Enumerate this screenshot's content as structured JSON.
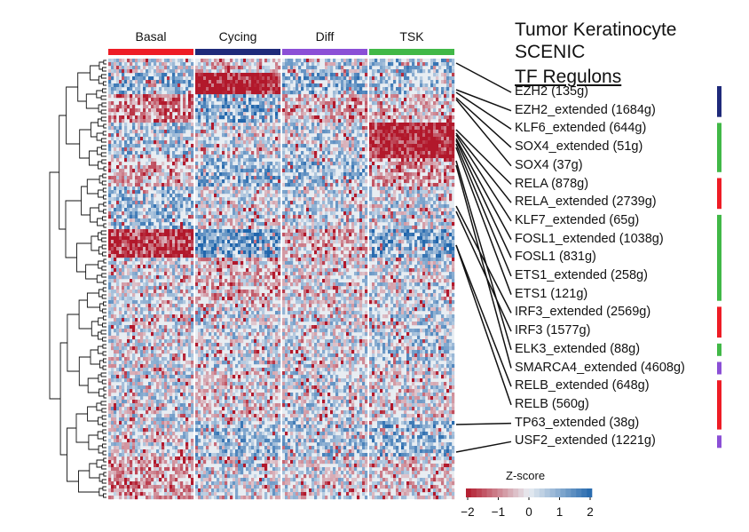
{
  "title": {
    "line1": "Tumor Keratinocyte",
    "line2": "SCENIC",
    "line3": "TF Regulons"
  },
  "colors": {
    "basal": "#ee1c25",
    "cycing": "#1f2a7a",
    "diff": "#8b4fd6",
    "tsk": "#41b847",
    "low": "#b2182b",
    "mid": "#e8edf2",
    "high": "#2166ac"
  },
  "chart_data": {
    "type": "heatmap",
    "title": "Tumor Keratinocyte SCENIC TF Regulons",
    "column_groups": [
      {
        "name": "Basal",
        "color": "#ee1c25"
      },
      {
        "name": "Cycing",
        "color": "#1f2a7a"
      },
      {
        "name": "Diff",
        "color": "#8b4fd6"
      },
      {
        "name": "TSK",
        "color": "#41b847"
      }
    ],
    "highlighted_regulons": [
      {
        "label": "EZH2 (135g)",
        "cluster": "Cycing"
      },
      {
        "label": "EZH2_extended (1684g)",
        "cluster": "Cycing"
      },
      {
        "label": "KLF6_extended (644g)",
        "cluster": "TSK"
      },
      {
        "label": "SOX4_extended (51g)",
        "cluster": "TSK"
      },
      {
        "label": "SOX4 (37g)",
        "cluster": "TSK"
      },
      {
        "label": "RELA (878g)",
        "cluster": "Basal"
      },
      {
        "label": "RELA_extended (2739g)",
        "cluster": "Basal"
      },
      {
        "label": "KLF7_extended (65g)",
        "cluster": "TSK"
      },
      {
        "label": "FOSL1_extended (1038g)",
        "cluster": "TSK"
      },
      {
        "label": "FOSL1 (831g)",
        "cluster": "TSK"
      },
      {
        "label": "ETS1_extended (258g)",
        "cluster": "TSK"
      },
      {
        "label": "ETS1 (121g)",
        "cluster": "TSK"
      },
      {
        "label": "IRF3_extended (2569g)",
        "cluster": "Basal"
      },
      {
        "label": "IRF3 (1577g)",
        "cluster": "Basal"
      },
      {
        "label": "ELK3_extended (88g)",
        "cluster": "TSK"
      },
      {
        "label": "SMARCA4_extended (4608g)",
        "cluster": "Diff"
      },
      {
        "label": "RELB_extended (648g)",
        "cluster": "Basal"
      },
      {
        "label": "RELB (560g)",
        "cluster": "Basal"
      },
      {
        "label": "TP63_extended (38g)",
        "cluster": "Basal"
      },
      {
        "label": "USF2_extended (1221g)",
        "cluster": "Diff"
      }
    ],
    "legend": {
      "title": "Z-score",
      "range": [
        -2,
        2
      ],
      "ticks": [
        "−2",
        "−1",
        "0",
        "1",
        "2"
      ]
    }
  }
}
